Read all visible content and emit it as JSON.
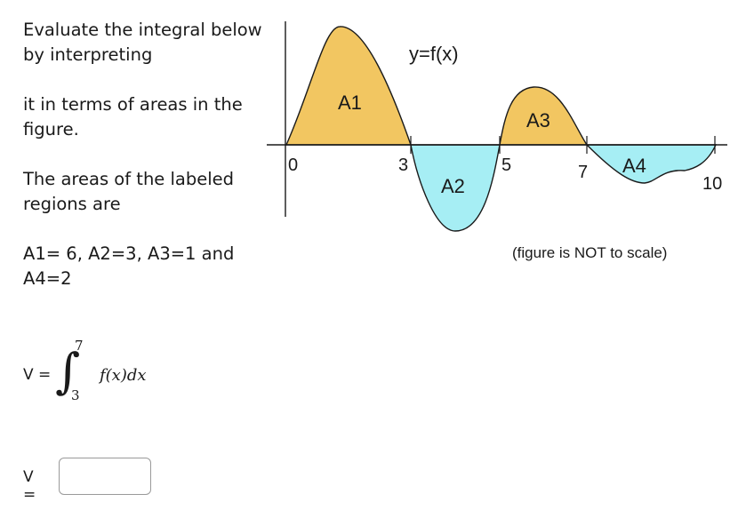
{
  "question": {
    "p1": "Evaluate the integral below by interpreting",
    "p2": "it in terms of areas in the figure.",
    "p3": "The areas of the labeled regions are",
    "p4": "A1= 6, A2=3, A3=1 and A4=2"
  },
  "integral": {
    "v_label": "V =",
    "sign": "∫",
    "upper": "7",
    "lower": "3",
    "integrand": "f(x)dx"
  },
  "answer": {
    "label": "V =",
    "value": ""
  },
  "figure": {
    "function_label": "y=f(x)",
    "note": "(figure is NOT to scale)",
    "regions": {
      "a1": "A1",
      "a2": "A2",
      "a3": "A3",
      "a4": "A4"
    },
    "x_ticks": {
      "t0": "0",
      "t3": "3",
      "t5": "5",
      "t7": "7",
      "t10": "10"
    },
    "colors": {
      "above_axis": "#f2c661",
      "below_axis": "#a6eef4",
      "stroke": "#1a1a1a"
    }
  }
}
